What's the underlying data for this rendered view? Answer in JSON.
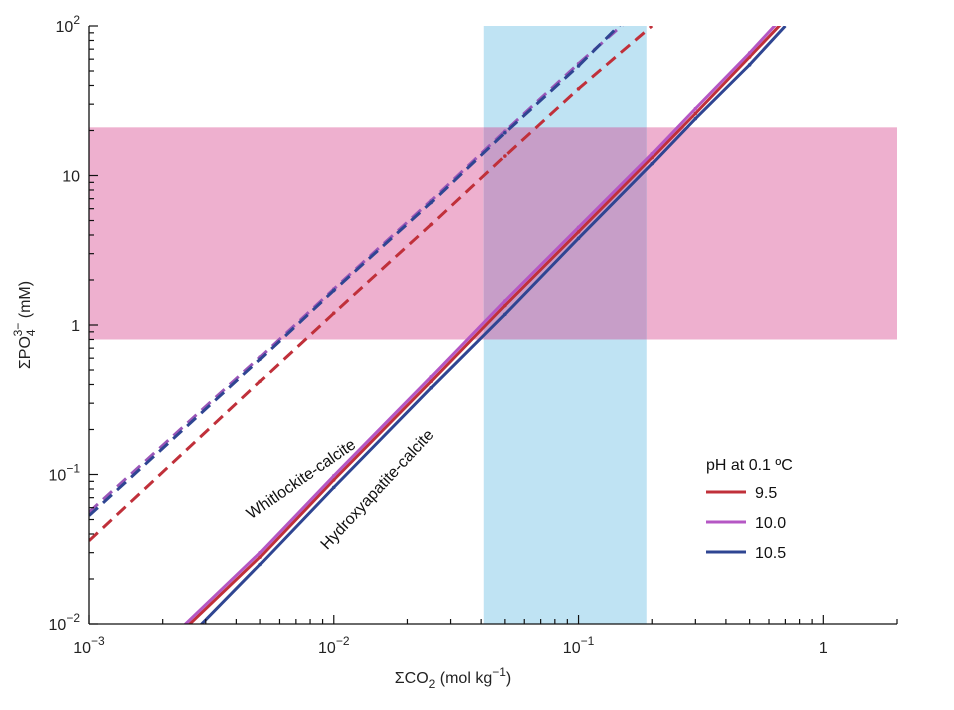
{
  "chart_data": {
    "type": "line",
    "x_scale": "log",
    "y_scale": "log",
    "xlim": [
      0.001,
      2
    ],
    "ylim": [
      0.01,
      100
    ],
    "xlabel": {
      "main": "ΣCO",
      "sub": "2",
      "rest": " (mol kg",
      "sup": "−1",
      "end": ")"
    },
    "ylabel": {
      "main": "ΣPO",
      "sub": "4",
      "sup": "3−",
      "end": " (mM)"
    },
    "x_ticks": [
      {
        "value": 0.001,
        "base": "10",
        "exp": "−3"
      },
      {
        "value": 0.01,
        "base": "10",
        "exp": "−2"
      },
      {
        "value": 0.1,
        "base": "10",
        "exp": "−1"
      },
      {
        "value": 1,
        "base": "1",
        "exp": ""
      }
    ],
    "y_ticks": [
      {
        "value": 0.01,
        "base": "10",
        "exp": "−2"
      },
      {
        "value": 0.1,
        "base": "10",
        "exp": "−1"
      },
      {
        "value": 1,
        "base": "1",
        "exp": ""
      },
      {
        "value": 10,
        "base": "10",
        "exp": ""
      },
      {
        "value": 100,
        "base": "10",
        "exp": "2"
      }
    ],
    "bands": [
      {
        "name": "phosphate-range",
        "axis": "y",
        "from": 0.8,
        "to": 21,
        "color": "#eeb0cf"
      },
      {
        "name": "carbonate-range",
        "axis": "x",
        "from": 0.041,
        "to": 0.19,
        "color": "#bfe3f3"
      }
    ],
    "overlap_color": "#c79ec8",
    "legend": {
      "title": "pH at 0.1 ºC",
      "position": "lower-right"
    },
    "series": [
      {
        "name": "9.5",
        "group": "Whitlockite-calcite",
        "color": "#c0303a",
        "dash": true,
        "x": [
          0.001,
          0.005,
          0.01,
          0.025,
          0.05,
          0.1,
          0.2
        ],
        "y": [
          0.036,
          0.42,
          1.2,
          4.7,
          13.5,
          38,
          100
        ]
      },
      {
        "name": "10.0",
        "group": "Whitlockite-calcite",
        "color": "#9a56b8",
        "dash": true,
        "x": [
          0.001,
          0.005,
          0.01,
          0.025,
          0.05,
          0.1,
          0.16
        ],
        "y": [
          0.056,
          0.61,
          1.74,
          6.8,
          19.8,
          56,
          110
        ]
      },
      {
        "name": "10.5",
        "group": "Whitlockite-calcite",
        "color": "#2f4592",
        "dash": true,
        "x": [
          0.001,
          0.005,
          0.01,
          0.025,
          0.05,
          0.1,
          0.155
        ],
        "y": [
          0.053,
          0.59,
          1.7,
          6.6,
          19.3,
          54,
          110
        ]
      },
      {
        "name": "9.5",
        "group": "Hydroxyapatite-calcite",
        "color": "#c0303a",
        "dash": false,
        "x": [
          0.0025,
          0.005,
          0.01,
          0.025,
          0.05,
          0.1,
          0.2,
          0.3,
          0.5,
          0.68
        ],
        "y": [
          0.0095,
          0.028,
          0.092,
          0.42,
          1.35,
          4.2,
          13.2,
          26,
          62,
          105
        ]
      },
      {
        "name": "10.0",
        "group": "Hydroxyapatite-calcite",
        "color": "#b557c4",
        "dash": false,
        "x": [
          0.0024,
          0.005,
          0.01,
          0.025,
          0.05,
          0.1,
          0.2,
          0.3,
          0.5,
          0.65
        ],
        "y": [
          0.0095,
          0.03,
          0.098,
          0.45,
          1.45,
          4.5,
          14,
          28,
          66,
          105
        ]
      },
      {
        "name": "10.5",
        "group": "Hydroxyapatite-calcite",
        "color": "#2f4592",
        "dash": false,
        "x": [
          0.0028,
          0.005,
          0.01,
          0.025,
          0.05,
          0.1,
          0.2,
          0.3,
          0.5,
          0.7
        ],
        "y": [
          0.0095,
          0.025,
          0.082,
          0.38,
          1.18,
          3.8,
          12,
          24,
          55,
          100
        ]
      }
    ],
    "annotations": [
      {
        "name": "whitlockite-label",
        "text": "Whitlockite-calcite",
        "x": 0.0046,
        "y": 0.05,
        "angle": -34.5
      },
      {
        "name": "hydroxyapatite-label",
        "text": "Hydroxyapatite-calcite",
        "x": 0.0094,
        "y": 0.031,
        "angle": -47
      }
    ]
  }
}
